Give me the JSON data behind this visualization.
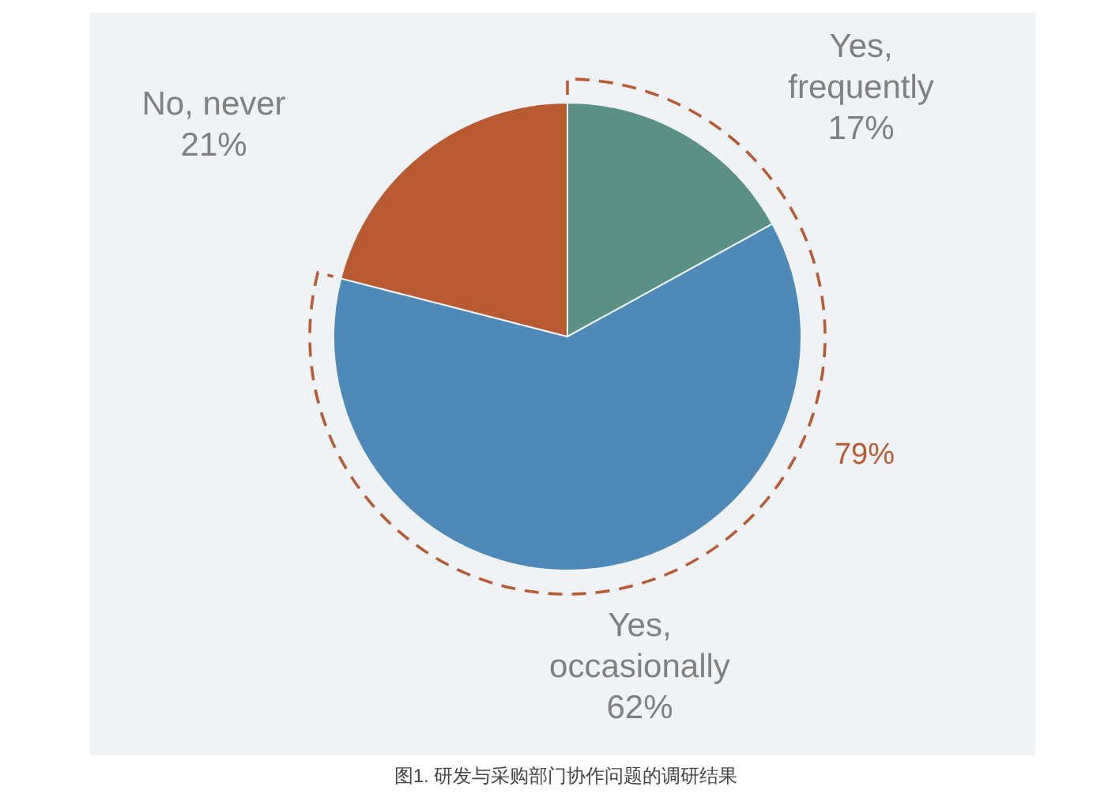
{
  "chart_data": {
    "type": "pie",
    "categories": [
      "Yes, frequently",
      "Yes, occasionally",
      "No, never"
    ],
    "values": [
      17,
      62,
      21
    ],
    "colors": [
      "#5b9086",
      "#4f89b8",
      "#b85b33"
    ],
    "value_labels": [
      "17%",
      "62%",
      "21%"
    ],
    "legend": false,
    "annotations": [
      "79%",
      "图1. 研发与采购部门协作问题的调研结果"
    ]
  }
}
